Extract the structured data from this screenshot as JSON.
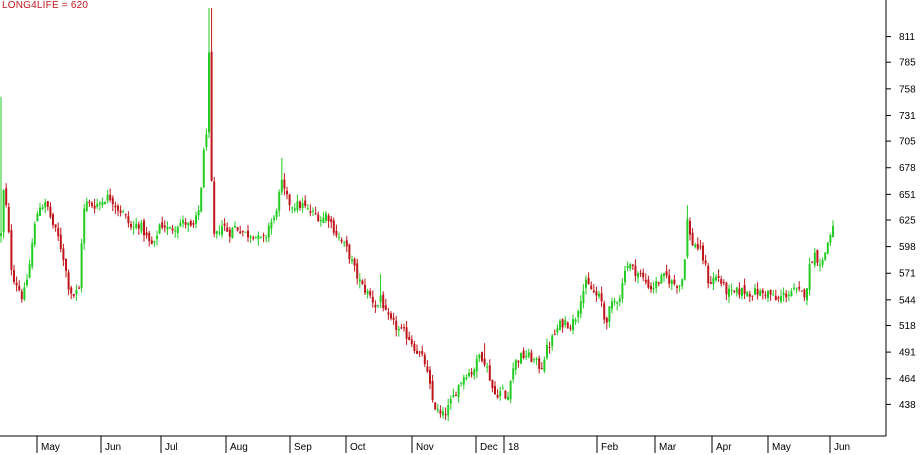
{
  "chart_data": {
    "type": "candlestick",
    "title": "LONG4LIFE = 620",
    "ylim": [
      412,
      840
    ],
    "yticks": [
      438,
      464,
      491,
      518,
      544,
      571,
      598,
      625,
      651,
      678,
      705,
      731,
      758,
      785,
      811
    ],
    "xticks": [
      "May",
      "Jun",
      "Jul",
      "Aug",
      "Sep",
      "Oct",
      "Nov",
      "Dec",
      "18",
      "Feb",
      "Mar",
      "Apr",
      "May",
      "Jun"
    ],
    "grid": false,
    "colors": {
      "up": "#22cc22",
      "down": "#c0141a",
      "title": "#c0141a",
      "axis": "#000000"
    },
    "keypoints": [
      [
        0,
        610,
        750
      ],
      [
        3,
        660,
        0
      ],
      [
        7,
        620,
        0
      ],
      [
        11,
        570,
        0
      ],
      [
        16,
        560,
        0
      ],
      [
        22,
        545,
        0
      ],
      [
        28,
        575,
        0
      ],
      [
        33,
        615,
        0
      ],
      [
        38,
        640,
        0
      ],
      [
        46,
        640,
        0
      ],
      [
        52,
        620,
        0
      ],
      [
        58,
        605,
        0
      ],
      [
        63,
        585,
        0
      ],
      [
        67,
        560,
        0
      ],
      [
        72,
        548,
        0
      ],
      [
        78,
        555,
        0
      ],
      [
        82,
        630,
        0
      ],
      [
        85,
        642,
        0
      ],
      [
        95,
        640,
        0
      ],
      [
        105,
        648,
        0
      ],
      [
        110,
        648,
        0
      ],
      [
        116,
        638,
        0
      ],
      [
        122,
        632,
        0
      ],
      [
        126,
        625,
        0
      ],
      [
        131,
        615,
        0
      ],
      [
        137,
        622,
        0
      ],
      [
        142,
        615,
        0
      ],
      [
        148,
        602,
        0
      ],
      [
        153,
        598,
        0
      ],
      [
        158,
        620,
        0
      ],
      [
        163,
        620,
        0
      ],
      [
        168,
        614,
        0
      ],
      [
        173,
        618,
        0
      ],
      [
        178,
        622,
        0
      ],
      [
        185,
        622,
        0
      ],
      [
        191,
        615,
        0
      ],
      [
        195,
        625,
        0
      ],
      [
        199,
        640,
        0
      ],
      [
        202,
        690,
        0
      ],
      [
        205,
        700,
        0
      ],
      [
        207,
        780,
        0
      ],
      [
        209,
        800,
        840
      ],
      [
        211,
        625,
        0
      ],
      [
        214,
        602,
        0
      ],
      [
        217,
        615,
        0
      ],
      [
        222,
        620,
        0
      ],
      [
        228,
        612,
        0
      ],
      [
        234,
        618,
        0
      ],
      [
        240,
        615,
        0
      ],
      [
        246,
        610,
        0
      ],
      [
        252,
        612,
        0
      ],
      [
        258,
        605,
        0
      ],
      [
        264,
        605,
        0
      ],
      [
        268,
        620,
        0
      ],
      [
        273,
        625,
        0
      ],
      [
        277,
        645,
        0
      ],
      [
        281,
        662,
        688
      ],
      [
        285,
        648,
        0
      ],
      [
        290,
        640,
        0
      ],
      [
        296,
        640,
        0
      ],
      [
        302,
        640,
        0
      ],
      [
        306,
        635,
        0
      ],
      [
        311,
        632,
        0
      ],
      [
        316,
        630,
        0
      ],
      [
        321,
        625,
        0
      ],
      [
        326,
        632,
        0
      ],
      [
        331,
        620,
        0
      ],
      [
        336,
        610,
        0
      ],
      [
        341,
        602,
        0
      ],
      [
        346,
        595,
        0
      ],
      [
        351,
        582,
        0
      ],
      [
        356,
        568,
        0
      ],
      [
        361,
        558,
        0
      ],
      [
        366,
        552,
        0
      ],
      [
        371,
        545,
        0
      ],
      [
        376,
        535,
        0
      ],
      [
        380,
        550,
        570
      ],
      [
        384,
        530,
        0
      ],
      [
        389,
        522,
        0
      ],
      [
        394,
        518,
        0
      ],
      [
        399,
        512,
        0
      ],
      [
        404,
        510,
        0
      ],
      [
        409,
        505,
        0
      ],
      [
        414,
        495,
        0
      ],
      [
        419,
        488,
        0
      ],
      [
        424,
        480,
        0
      ],
      [
        428,
        460,
        0
      ],
      [
        432,
        440,
        0
      ],
      [
        437,
        430,
        0
      ],
      [
        441,
        425,
        0
      ],
      [
        446,
        432,
        0
      ],
      [
        450,
        440,
        0
      ],
      [
        455,
        452,
        0
      ],
      [
        460,
        462,
        0
      ],
      [
        465,
        470,
        0
      ],
      [
        470,
        470,
        0
      ],
      [
        475,
        478,
        0
      ],
      [
        479,
        490,
        0
      ],
      [
        484,
        482,
        500
      ],
      [
        489,
        465,
        0
      ],
      [
        493,
        448,
        0
      ],
      [
        498,
        450,
        0
      ],
      [
        502,
        452,
        0
      ],
      [
        506,
        438,
        0
      ],
      [
        510,
        470,
        0
      ],
      [
        515,
        482,
        0
      ],
      [
        520,
        486,
        0
      ],
      [
        525,
        488,
        0
      ],
      [
        530,
        485,
        0
      ],
      [
        535,
        480,
        0
      ],
      [
        540,
        475,
        0
      ],
      [
        545,
        492,
        0
      ],
      [
        550,
        502,
        0
      ],
      [
        555,
        512,
        0
      ],
      [
        560,
        520,
        0
      ],
      [
        565,
        522,
        0
      ],
      [
        570,
        518,
        0
      ],
      [
        575,
        528,
        0
      ],
      [
        580,
        548,
        0
      ],
      [
        585,
        560,
        0
      ],
      [
        590,
        555,
        0
      ],
      [
        595,
        548,
        0
      ],
      [
        600,
        545,
        0
      ],
      [
        604,
        520,
        0
      ],
      [
        608,
        532,
        0
      ],
      [
        612,
        540,
        0
      ],
      [
        616,
        545,
        0
      ],
      [
        620,
        550,
        0
      ],
      [
        624,
        578,
        0
      ],
      [
        628,
        580,
        0
      ],
      [
        632,
        575,
        0
      ],
      [
        636,
        572,
        0
      ],
      [
        640,
        568,
        0
      ],
      [
        645,
        562,
        0
      ],
      [
        650,
        556,
        0
      ],
      [
        655,
        560,
        0
      ],
      [
        660,
        565,
        0
      ],
      [
        665,
        568,
        0
      ],
      [
        670,
        562,
        0
      ],
      [
        675,
        560,
        0
      ],
      [
        680,
        560,
        0
      ],
      [
        683,
        575,
        0
      ],
      [
        686,
        628,
        640
      ],
      [
        690,
        602,
        0
      ],
      [
        695,
        600,
        0
      ],
      [
        700,
        592,
        0
      ],
      [
        704,
        580,
        0
      ],
      [
        708,
        560,
        0
      ],
      [
        712,
        565,
        0
      ],
      [
        717,
        568,
        0
      ],
      [
        721,
        560,
        0
      ],
      [
        726,
        552,
        0
      ],
      [
        731,
        550,
        0
      ],
      [
        736,
        552,
        0
      ],
      [
        741,
        553,
        0
      ],
      [
        746,
        552,
        0
      ],
      [
        751,
        551,
        0
      ],
      [
        756,
        552,
        0
      ],
      [
        761,
        550,
        0
      ],
      [
        766,
        552,
        0
      ],
      [
        771,
        548,
        0
      ],
      [
        776,
        542,
        0
      ],
      [
        781,
        548,
        0
      ],
      [
        786,
        550,
        0
      ],
      [
        791,
        553,
        0
      ],
      [
        796,
        552,
        0
      ],
      [
        801,
        550,
        0
      ],
      [
        805,
        552,
        0
      ],
      [
        809,
        580,
        0
      ],
      [
        813,
        592,
        0
      ],
      [
        817,
        585,
        0
      ],
      [
        821,
        580,
        0
      ],
      [
        825,
        596,
        0
      ],
      [
        829,
        610,
        0
      ],
      [
        833,
        620,
        0
      ]
    ]
  }
}
